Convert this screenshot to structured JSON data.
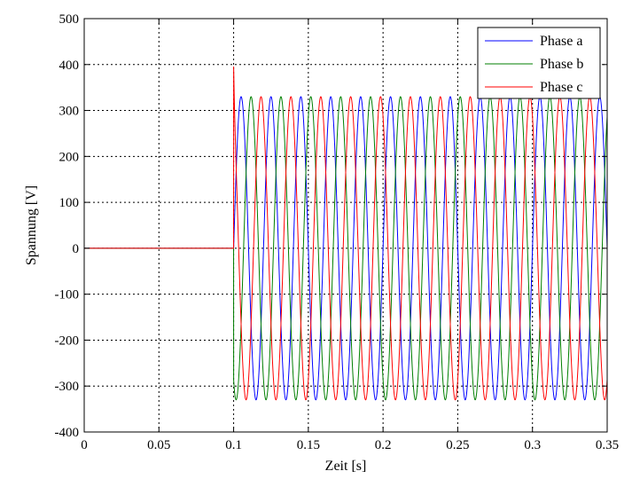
{
  "chart_data": {
    "type": "line",
    "title": "",
    "xlabel": "Zeit [s]",
    "ylabel": "Spannung [V]",
    "xlim": [
      0,
      0.35
    ],
    "ylim": [
      -400,
      500
    ],
    "xticks": [
      0,
      0.05,
      0.1,
      0.15,
      0.2,
      0.25,
      0.3,
      0.35
    ],
    "xtick_labels": [
      "0",
      "0.05",
      "0.1",
      "0.15",
      "0.2",
      "0.25",
      "0.3",
      "0.35"
    ],
    "yticks": [
      -400,
      -300,
      -200,
      -100,
      0,
      100,
      200,
      300,
      400,
      500
    ],
    "ytick_labels": [
      "-400",
      "-300",
      "-200",
      "-100",
      "0",
      "100",
      "200",
      "300",
      "400",
      "500"
    ],
    "grid": true,
    "legend_position": "top-right",
    "series": [
      {
        "name": "Phase a",
        "color": "#0000ff",
        "amplitude": 330,
        "frequency_hz": 50,
        "phase_deg": 0,
        "switch_on_time": 0.1,
        "value_before_switch": 0,
        "transient_peak": 0
      },
      {
        "name": "Phase b",
        "color": "#007f00",
        "amplitude": 330,
        "frequency_hz": 50,
        "phase_deg": -120,
        "switch_on_time": 0.1,
        "value_before_switch": 0,
        "transient_peak": 0
      },
      {
        "name": "Phase c",
        "color": "#ff0000",
        "amplitude": 330,
        "frequency_hz": 50,
        "phase_deg": 120,
        "switch_on_time": 0.1,
        "value_before_switch": 0,
        "transient_peak": 400
      }
    ]
  }
}
